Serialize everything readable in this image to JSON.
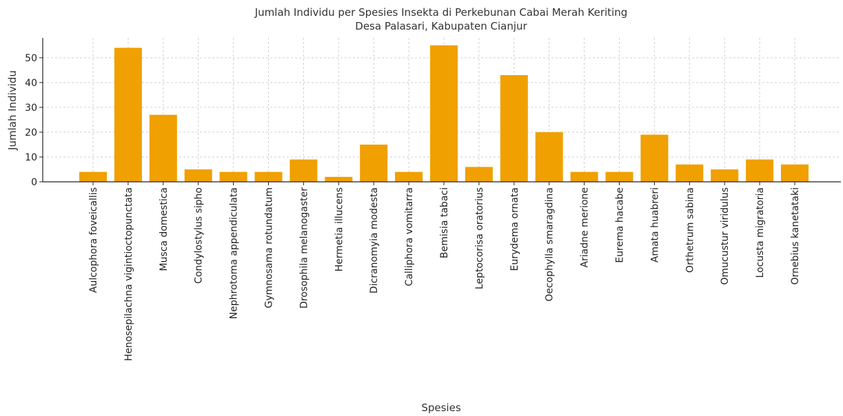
{
  "chart_data": {
    "type": "bar",
    "title": "Jumlah Individu per Spesies Insekta di Perkebunan Cabai Merah Keriting",
    "subtitle": "Desa Palasari, Kabupaten Cianjur",
    "xlabel": "Spesies",
    "ylabel": "Jumlah Individu",
    "ylim": [
      0,
      58
    ],
    "yticks": [
      0,
      10,
      20,
      30,
      40,
      50
    ],
    "grid": true,
    "bar_color": "#f0a000",
    "categories": [
      "Aulcophora foveicallis",
      "Henosepilachna vigintioctopunctata",
      "Musca domestica",
      "Condylostylus sipho",
      "Nephrotoma appendiculata",
      "Gymnosama rotundatum",
      "Drosophila melanogaster",
      "Hermetia illucens",
      "Dicranomyia modesta",
      "Calliphora vomitarra",
      "Bemisia tabaci",
      "Leptocorisa oratorius",
      "Eurydema ornata",
      "Oecophylla smaragdina",
      "Ariadne merione",
      "Eurema hacabe",
      "Amata huabreri",
      "Orthetrum sabina",
      "Omucustur viridulus",
      "Locusta migratoria",
      "Ornebius kanetataki"
    ],
    "values": [
      4,
      54,
      27,
      5,
      4,
      4,
      9,
      2,
      15,
      4,
      55,
      6,
      43,
      20,
      4,
      4,
      19,
      7,
      5,
      9,
      7
    ]
  }
}
